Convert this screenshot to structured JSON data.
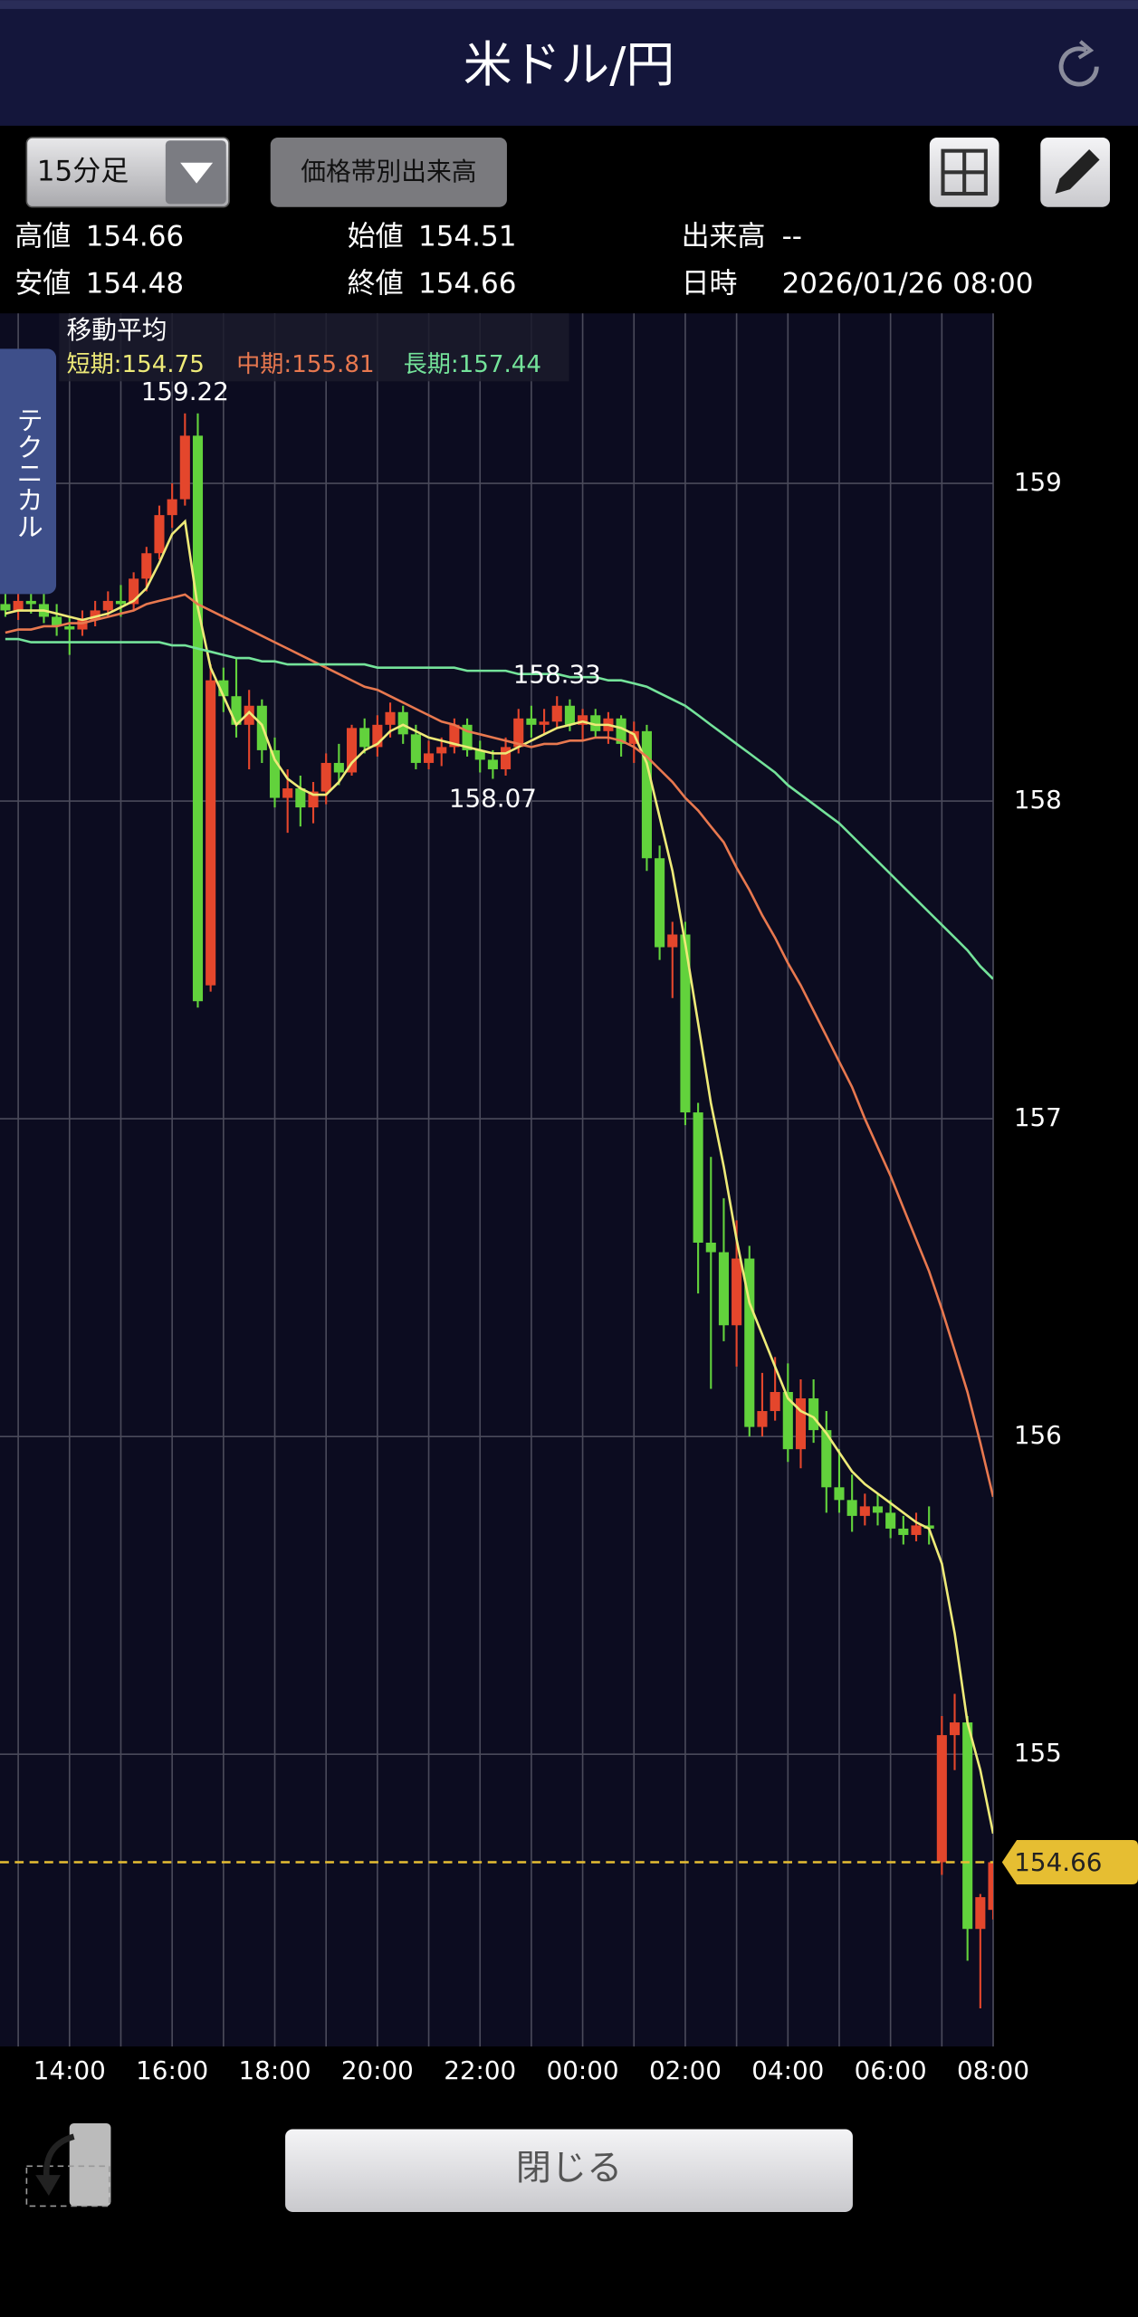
{
  "header": {
    "title": "米ドル/円"
  },
  "controls": {
    "timeframe": "15分足",
    "volume_profile": "価格帯別出来高",
    "technical_tab": "テクニカル",
    "close_button": "閉じる"
  },
  "info": {
    "rows": [
      [
        {
          "label": "高値",
          "value": 154.66
        },
        {
          "label": "始値",
          "value": 154.51
        },
        {
          "label": "出来高",
          "value": "--"
        }
      ],
      [
        {
          "label": "安値",
          "value": 154.48
        },
        {
          "label": "終値",
          "value": 154.66
        },
        {
          "label": "日時",
          "value": "2026/01/26 08:00"
        }
      ]
    ]
  },
  "chart_data": {
    "type": "candlestick",
    "legend_title": "移動平均",
    "categories": [
      null,
      null,
      null,
      null,
      null,
      "14:00",
      null,
      null,
      null,
      null,
      null,
      null,
      null,
      "16:00",
      null,
      null,
      null,
      null,
      null,
      null,
      null,
      "18:00",
      null,
      null,
      null,
      null,
      null,
      null,
      null,
      "20:00",
      null,
      null,
      null,
      null,
      null,
      null,
      null,
      "22:00",
      null,
      null,
      null,
      null,
      null,
      null,
      null,
      "00:00",
      null,
      null,
      null,
      null,
      null,
      null,
      null,
      "02:00",
      null,
      null,
      null,
      null,
      null,
      null,
      null,
      "04:00",
      null,
      null,
      null,
      null,
      null,
      null,
      null,
      "06:00",
      null,
      null,
      null,
      null,
      null,
      null,
      null,
      "08:00"
    ],
    "open": [
      158.62,
      158.6,
      158.63,
      158.62,
      158.58,
      158.55,
      158.54,
      158.57,
      158.6,
      158.63,
      158.62,
      158.7,
      158.78,
      158.9,
      158.95,
      159.15,
      157.42,
      158.38,
      158.33,
      158.24,
      158.3,
      158.16,
      158.01,
      158.04,
      157.98,
      158.03,
      158.12,
      158.09,
      158.23,
      158.17,
      158.24,
      158.28,
      158.21,
      158.12,
      158.15,
      158.17,
      158.24,
      158.16,
      158.13,
      158.1,
      158.17,
      158.26,
      158.24,
      158.25,
      158.3,
      158.24,
      158.27,
      158.22,
      158.26,
      158.18,
      158.22,
      157.82,
      157.54,
      157.58,
      157.02,
      156.61,
      156.58,
      156.35,
      156.56,
      156.03,
      156.08,
      156.14,
      155.96,
      156.12,
      156.02,
      155.84,
      155.8,
      155.75,
      155.78,
      155.76,
      155.71,
      155.69,
      155.72,
      154.66,
      155.06,
      155.1,
      154.45,
      154.51
    ],
    "high": [
      158.66,
      158.66,
      158.67,
      158.66,
      158.62,
      158.58,
      158.6,
      158.63,
      158.66,
      158.68,
      158.72,
      158.8,
      158.93,
      159.0,
      159.22,
      159.22,
      158.43,
      158.42,
      158.45,
      158.35,
      158.32,
      158.2,
      158.1,
      158.08,
      158.06,
      158.15,
      158.18,
      158.24,
      158.26,
      158.27,
      158.31,
      158.3,
      158.24,
      158.19,
      158.2,
      158.26,
      158.26,
      158.19,
      158.16,
      158.2,
      158.29,
      158.3,
      158.29,
      158.33,
      158.32,
      158.29,
      158.29,
      158.28,
      158.27,
      158.25,
      158.24,
      157.86,
      157.62,
      157.62,
      157.05,
      156.88,
      156.75,
      156.68,
      156.6,
      156.2,
      156.25,
      156.23,
      156.18,
      156.18,
      156.08,
      155.96,
      155.88,
      155.82,
      155.82,
      155.8,
      155.75,
      155.76,
      155.78,
      155.12,
      155.19,
      155.12,
      154.56,
      154.66
    ],
    "low": [
      158.58,
      158.57,
      158.59,
      158.56,
      158.52,
      158.46,
      158.52,
      158.55,
      158.58,
      158.58,
      158.6,
      158.66,
      158.76,
      158.86,
      158.93,
      157.35,
      157.4,
      158.28,
      158.2,
      158.1,
      158.12,
      157.98,
      157.9,
      157.92,
      157.93,
      157.99,
      158.05,
      158.08,
      158.15,
      158.14,
      158.2,
      158.18,
      158.1,
      158.1,
      158.11,
      158.15,
      158.14,
      158.09,
      158.07,
      158.08,
      158.15,
      158.2,
      158.21,
      158.23,
      158.22,
      158.19,
      158.2,
      158.18,
      158.14,
      158.12,
      157.78,
      157.5,
      157.38,
      156.98,
      156.45,
      156.15,
      156.3,
      156.22,
      156.0,
      156.0,
      156.05,
      155.92,
      155.9,
      155.98,
      155.76,
      155.76,
      155.7,
      155.72,
      155.72,
      155.68,
      155.66,
      155.67,
      155.66,
      154.62,
      154.95,
      154.35,
      154.2,
      154.48
    ],
    "close": [
      158.6,
      158.63,
      158.62,
      158.58,
      158.55,
      158.54,
      158.57,
      158.6,
      158.63,
      158.62,
      158.7,
      158.78,
      158.9,
      158.95,
      159.15,
      157.37,
      158.38,
      158.33,
      158.24,
      158.3,
      158.16,
      158.01,
      158.04,
      157.98,
      158.03,
      158.12,
      158.09,
      158.23,
      158.17,
      158.24,
      158.28,
      158.21,
      158.12,
      158.15,
      158.17,
      158.24,
      158.16,
      158.13,
      158.1,
      158.17,
      158.26,
      158.24,
      158.25,
      158.3,
      158.24,
      158.27,
      158.22,
      158.26,
      158.18,
      158.22,
      157.82,
      157.54,
      157.58,
      157.02,
      156.61,
      156.58,
      156.35,
      156.56,
      156.03,
      156.08,
      156.14,
      155.96,
      156.12,
      156.02,
      155.84,
      155.8,
      155.75,
      155.78,
      155.76,
      155.71,
      155.69,
      155.72,
      155.71,
      155.06,
      155.1,
      154.45,
      154.55,
      154.66
    ],
    "up_color": "#e4462c",
    "down_color": "#62d23c",
    "series": [
      {
        "name": "短期:154.75",
        "color": "#eeea78",
        "values": [
          158.59,
          158.6,
          158.6,
          158.6,
          158.59,
          158.58,
          158.57,
          158.58,
          158.59,
          158.61,
          158.63,
          158.67,
          158.75,
          158.84,
          158.88,
          158.61,
          158.42,
          158.33,
          158.24,
          158.28,
          158.24,
          158.13,
          158.07,
          158.04,
          158.02,
          158.02,
          158.06,
          158.12,
          158.16,
          158.18,
          158.22,
          158.24,
          158.22,
          158.2,
          158.19,
          158.18,
          158.17,
          158.16,
          158.15,
          158.15,
          158.17,
          158.19,
          158.21,
          158.23,
          158.24,
          158.25,
          158.24,
          158.24,
          158.23,
          158.21,
          158.12,
          157.95,
          157.78,
          157.55,
          157.3,
          157.05,
          156.85,
          156.62,
          156.42,
          156.32,
          156.22,
          156.12,
          156.08,
          156.06,
          156.01,
          155.95,
          155.89,
          155.85,
          155.82,
          155.79,
          155.76,
          155.73,
          155.71,
          155.6,
          155.38,
          155.1,
          154.95,
          154.75
        ]
      },
      {
        "name": "中期:155.81",
        "color": "#e8784f",
        "values": [
          158.53,
          158.54,
          158.54,
          158.55,
          158.55,
          158.56,
          158.56,
          158.57,
          158.58,
          158.59,
          158.6,
          158.62,
          158.63,
          158.64,
          158.65,
          158.62,
          158.6,
          158.58,
          158.56,
          158.54,
          158.52,
          158.5,
          158.48,
          158.46,
          158.44,
          158.42,
          158.4,
          158.38,
          158.36,
          158.35,
          158.33,
          158.31,
          158.29,
          158.27,
          158.25,
          158.24,
          158.22,
          158.21,
          158.2,
          158.19,
          158.18,
          158.17,
          158.18,
          158.18,
          158.19,
          158.19,
          158.2,
          158.2,
          158.19,
          158.17,
          158.14,
          158.1,
          158.06,
          158.01,
          157.97,
          157.92,
          157.87,
          157.79,
          157.72,
          157.64,
          157.57,
          157.49,
          157.42,
          157.34,
          157.26,
          157.18,
          157.1,
          157.0,
          156.91,
          156.82,
          156.72,
          156.62,
          156.52,
          156.4,
          156.27,
          156.14,
          155.98,
          155.81
        ]
      },
      {
        "name": "長期:157.44",
        "color": "#74e39a",
        "values": [
          158.51,
          158.51,
          158.5,
          158.5,
          158.5,
          158.5,
          158.5,
          158.5,
          158.5,
          158.5,
          158.5,
          158.5,
          158.5,
          158.49,
          158.49,
          158.48,
          158.47,
          158.46,
          158.45,
          158.45,
          158.44,
          158.44,
          158.43,
          158.43,
          158.43,
          158.43,
          158.43,
          158.43,
          158.43,
          158.42,
          158.42,
          158.42,
          158.42,
          158.42,
          158.42,
          158.42,
          158.41,
          158.41,
          158.41,
          158.41,
          158.4,
          158.4,
          158.4,
          158.4,
          158.39,
          158.39,
          158.39,
          158.38,
          158.38,
          158.37,
          158.36,
          158.34,
          158.32,
          158.3,
          158.27,
          158.24,
          158.21,
          158.18,
          158.15,
          158.12,
          158.09,
          158.05,
          158.02,
          157.99,
          157.96,
          157.93,
          157.89,
          157.85,
          157.81,
          157.77,
          157.73,
          157.69,
          157.65,
          157.61,
          157.57,
          157.53,
          157.48,
          157.44
        ]
      }
    ],
    "high_low_labels": [
      159.22,
      158.33,
      158.07
    ],
    "last_price": 154.66,
    "last_price_color": "#e6be32",
    "ylim": [
      154.08,
      159.535
    ],
    "yticks": [
      155,
      156,
      157,
      158,
      159
    ],
    "grid": true
  }
}
